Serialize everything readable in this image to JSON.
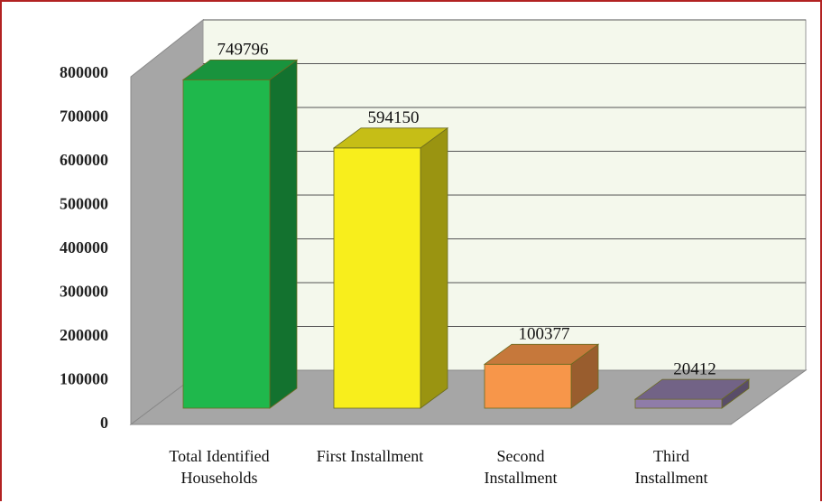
{
  "chart_data": {
    "type": "bar3d",
    "categories": [
      "Total Identified Households",
      "First Installment",
      "Second Installment",
      "Third Installment"
    ],
    "values": [
      749796,
      594150,
      100377,
      20412
    ],
    "colors": [
      "#1fb84c",
      "#f8ee1c",
      "#f7964a",
      "#8f7ca8"
    ],
    "ylim": [
      0,
      800000
    ],
    "yticks": [
      0,
      100000,
      200000,
      300000,
      400000,
      500000,
      600000,
      700000,
      800000
    ],
    "grid": true
  }
}
